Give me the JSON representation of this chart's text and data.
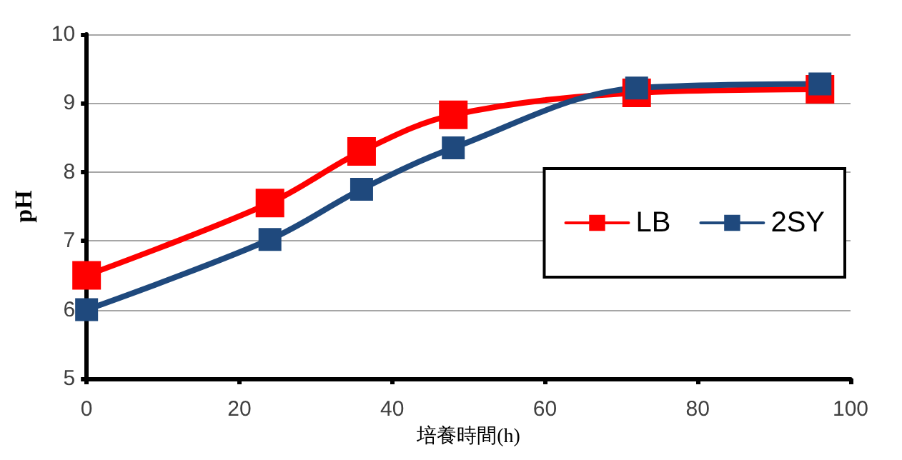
{
  "chart_data": {
    "type": "line",
    "xlabel": "培養時間(h)",
    "ylabel": "pH",
    "x": [
      0,
      24,
      36,
      48,
      72,
      96
    ],
    "series": [
      {
        "name": "LB",
        "color": "#ff0000",
        "values": [
          6.5,
          7.55,
          8.3,
          8.83,
          9.15,
          9.2
        ]
      },
      {
        "name": "2SY",
        "color": "#1f497d",
        "values": [
          6.0,
          7.02,
          7.75,
          8.35,
          9.22,
          9.28
        ]
      }
    ],
    "xlim": [
      0,
      100
    ],
    "xticks": [
      0,
      20,
      40,
      60,
      80,
      100
    ],
    "ylim": [
      5,
      10
    ],
    "yticks": [
      5,
      6,
      7,
      8,
      9,
      10
    ],
    "grid": "y",
    "legend": "right",
    "marker": "square",
    "line_style": "solid"
  }
}
